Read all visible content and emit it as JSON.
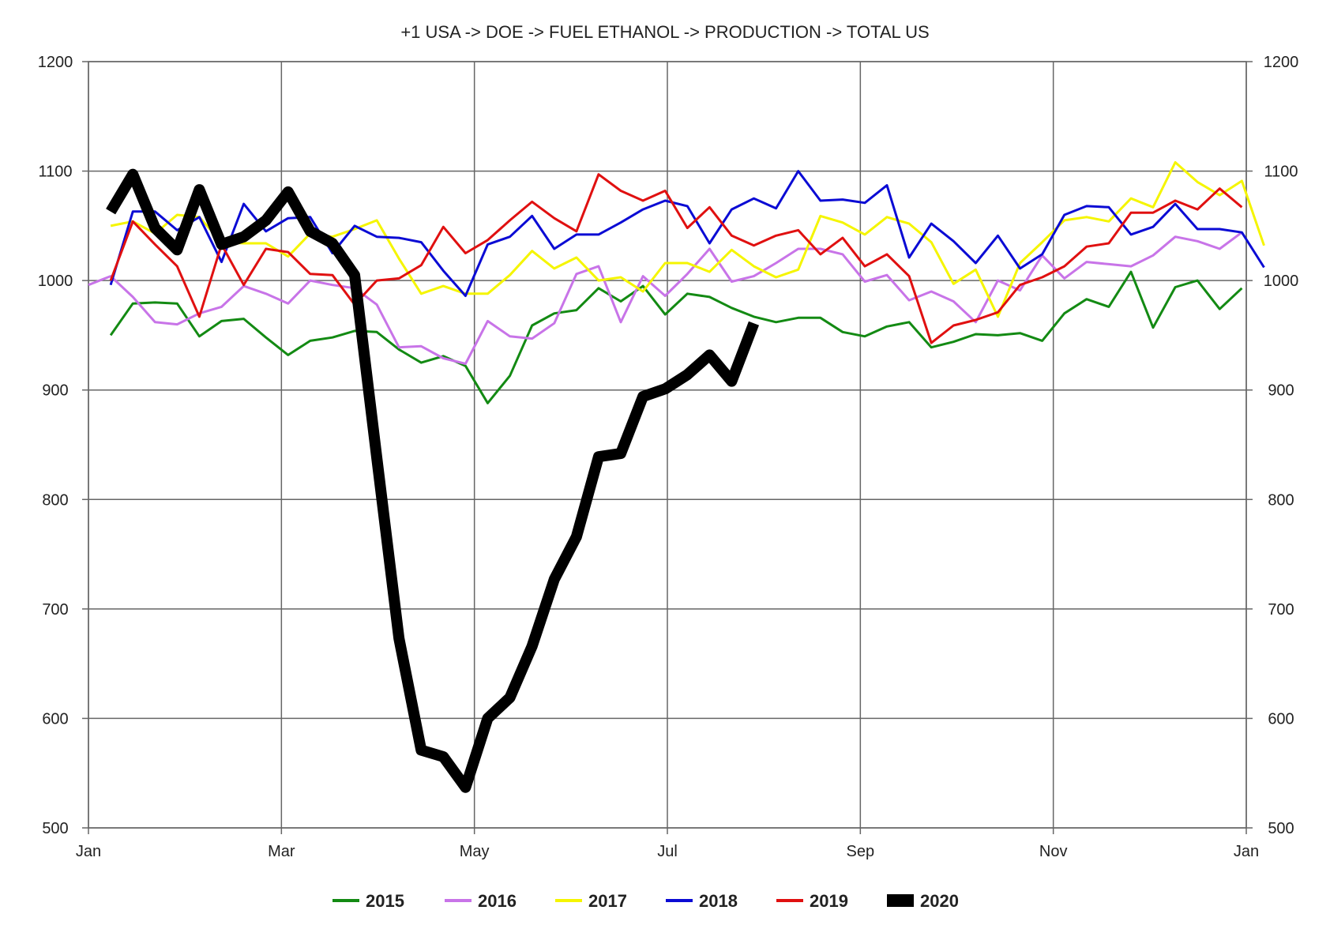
{
  "chart_data": {
    "type": "line",
    "title": "+1 USA -> DOE -> FUEL ETHANOL -> PRODUCTION -> TOTAL US",
    "xlabel": "",
    "ylabel": "",
    "x_axis": {
      "type": "time",
      "domain": [
        "Jan",
        "Jan"
      ],
      "tick_labels": [
        "Jan",
        "Mar",
        "May",
        "Jul",
        "Sep",
        "Nov",
        "Jan"
      ],
      "tick_months": [
        0,
        2,
        4,
        6,
        8,
        10,
        12
      ]
    },
    "y_axis": {
      "left_and_right": true,
      "ylim": [
        500,
        1200
      ],
      "ticks": [
        500,
        600,
        700,
        800,
        900,
        1000,
        1100,
        1200
      ]
    },
    "grid": true,
    "legend": {
      "placement": "bottom-center"
    },
    "series": [
      {
        "name": "2015",
        "color": "#138a13",
        "stroke": 3,
        "weeks": [
          1,
          53
        ],
        "values": [
          950,
          979,
          980,
          979,
          949,
          963,
          965,
          948,
          932,
          945,
          948,
          954,
          953,
          937,
          925,
          931,
          922,
          888,
          913,
          959,
          970,
          973,
          993,
          981,
          995,
          969,
          988,
          985,
          975,
          967,
          962,
          966,
          966,
          953,
          949,
          958,
          962,
          939,
          944,
          951,
          950,
          952,
          945,
          970,
          983,
          976,
          1008,
          957,
          994,
          1000,
          974,
          993
        ]
      },
      {
        "name": "2016",
        "color": "#c874e8",
        "stroke": 3,
        "weeks": [
          0,
          53
        ],
        "values": [
          996,
          1004,
          985,
          962,
          960,
          970,
          976,
          995,
          988,
          979,
          1000,
          996,
          993,
          978,
          939,
          940,
          929,
          924,
          963,
          949,
          947,
          961,
          1006,
          1013,
          962,
          1004,
          986,
          1006,
          1029,
          999,
          1004,
          1016,
          1029,
          1029,
          1024,
          999,
          1005,
          982,
          990,
          981,
          962,
          1000,
          991,
          1023,
          1002,
          1017,
          1015,
          1013,
          1023,
          1040,
          1036,
          1029,
          1044
        ]
      },
      {
        "name": "2017",
        "color": "#f5f500",
        "stroke": 3,
        "weeks": [
          1,
          53
        ],
        "values": [
          1050,
          1054,
          1043,
          1060,
          1058,
          1035,
          1034,
          1034,
          1022,
          1043,
          1040,
          1047,
          1055,
          1020,
          988,
          995,
          988,
          988,
          1005,
          1027,
          1011,
          1021,
          1000,
          1003,
          990,
          1016,
          1016,
          1008,
          1028,
          1013,
          1003,
          1010,
          1059,
          1053,
          1042,
          1058,
          1052,
          1035,
          997,
          1010,
          967,
          1016,
          1035,
          1055,
          1058,
          1054,
          1075,
          1067,
          1108,
          1090,
          1078,
          1091,
          1032
        ]
      },
      {
        "name": "2018",
        "color": "#0b0bd4",
        "stroke": 3,
        "weeks": [
          1,
          53
        ],
        "values": [
          996,
          1063,
          1063,
          1046,
          1058,
          1017,
          1070,
          1045,
          1057,
          1058,
          1025,
          1050,
          1040,
          1039,
          1035,
          1009,
          986,
          1033,
          1040,
          1059,
          1029,
          1042,
          1042,
          1053,
          1065,
          1073,
          1068,
          1034,
          1065,
          1075,
          1066,
          1100,
          1073,
          1074,
          1071,
          1087,
          1021,
          1052,
          1036,
          1016,
          1041,
          1011,
          1024,
          1060,
          1068,
          1067,
          1042,
          1049,
          1070,
          1047,
          1047,
          1044,
          1012
        ]
      },
      {
        "name": "2019",
        "color": "#e01010",
        "stroke": 3,
        "weeks": [
          1,
          53
        ],
        "values": [
          1000,
          1054,
          1033,
          1013,
          967,
          1033,
          996,
          1029,
          1026,
          1006,
          1005,
          978,
          1000,
          1002,
          1014,
          1049,
          1025,
          1037,
          1055,
          1072,
          1057,
          1045,
          1097,
          1082,
          1073,
          1082,
          1048,
          1067,
          1041,
          1032,
          1041,
          1046,
          1024,
          1039,
          1013,
          1024,
          1004,
          943,
          959,
          964,
          971,
          996,
          1003,
          1013,
          1031,
          1034,
          1062,
          1062,
          1073,
          1065,
          1084,
          1067
        ]
      },
      {
        "name": "2020",
        "color": "#000000",
        "stroke": 14,
        "weeks": [
          1,
          30
        ],
        "values": [
          1063,
          1097,
          1048,
          1028,
          1083,
          1033,
          1040,
          1055,
          1081,
          1045,
          1034,
          1005,
          838,
          673,
          571,
          565,
          537,
          600,
          619,
          666,
          727,
          766,
          839,
          842,
          894,
          901,
          914,
          932,
          908,
          961
        ]
      }
    ]
  }
}
